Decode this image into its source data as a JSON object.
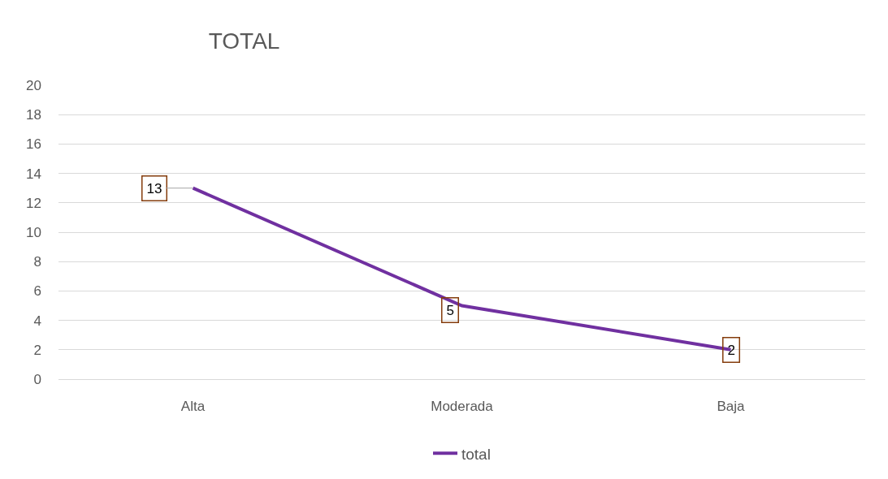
{
  "chart_data": {
    "type": "line",
    "title": "TOTAL",
    "categories": [
      "Alta",
      "Moderada",
      "Baja"
    ],
    "series": [
      {
        "name": "total",
        "color": "#7030a0",
        "values": [
          13,
          5,
          2
        ]
      }
    ],
    "ylim": [
      0,
      20
    ],
    "yticks": [
      0,
      2,
      4,
      6,
      8,
      10,
      12,
      14,
      16,
      18,
      20
    ],
    "grid": "y",
    "legend": "bottom",
    "data_labels": true,
    "marker": "none",
    "line_style": "solid"
  }
}
